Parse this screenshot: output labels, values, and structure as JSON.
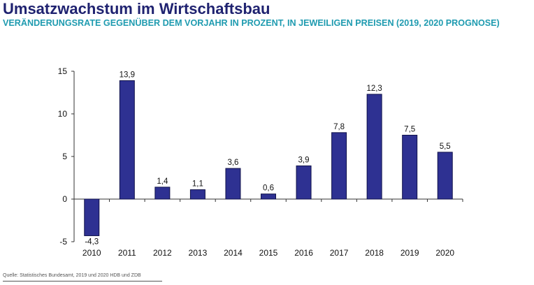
{
  "header": {
    "title": "Umsatzwachstum im Wirtschaftsbau",
    "subtitle": "VERÄNDERUNGSRATE GEGENÜBER DEM VORJAHR IN PROZENT, IN JEWEILIGEN PREISEN (2019, 2020 PROGNOSE)"
  },
  "footer": {
    "source": "Quelle: Statistisches Bundesamt, 2019 und 2020 HDB und ZDB"
  },
  "colors": {
    "title": "#1f2270",
    "subtitle": "#1f9bb0",
    "bar_fill": "#2e3192",
    "bar_stroke": "#10124a"
  },
  "chart_data": {
    "type": "bar",
    "title": "Umsatzwachstum im Wirtschaftsbau",
    "subtitle": "VERÄNDERUNGSRATE GEGENÜBER DEM VORJAHR IN PROZENT, IN JEWEILIGEN PREISEN (2019, 2020 PROGNOSE)",
    "xlabel": "",
    "ylabel": "",
    "categories": [
      "2010",
      "2011",
      "2012",
      "2013",
      "2014",
      "2015",
      "2016",
      "2017",
      "2018",
      "2019",
      "2020"
    ],
    "values": [
      -4.3,
      13.9,
      1.4,
      1.1,
      3.6,
      0.6,
      3.9,
      7.8,
      12.3,
      7.5,
      5.5
    ],
    "value_labels": [
      "-4,3",
      "13,9",
      "1,4",
      "1,1",
      "3,6",
      "0,6",
      "3,9",
      "7,8",
      "12,3",
      "7,5",
      "5,5"
    ],
    "ylim": [
      -5,
      15
    ],
    "yticks": [
      -5,
      0,
      5,
      10,
      15
    ],
    "ytick_labels": [
      "-5",
      "0",
      "5",
      "10",
      "15"
    ],
    "grid": false,
    "legend": "none"
  }
}
